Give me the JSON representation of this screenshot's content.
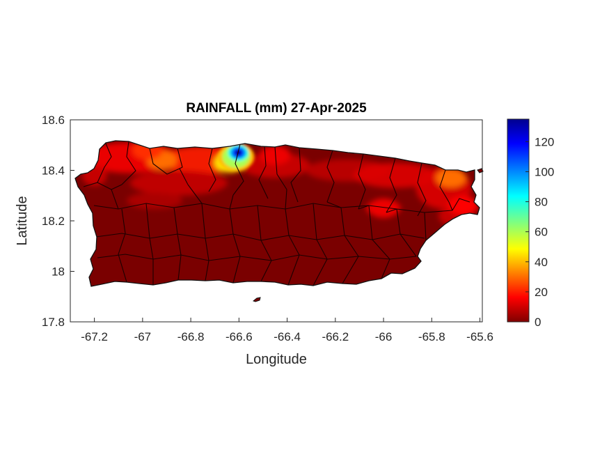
{
  "title": "RAINFALL (mm) 27-Apr-2025",
  "xlabel": "Longitude",
  "ylabel": "Latitude",
  "x_ticks": [
    "-67.2",
    "-67",
    "-66.8",
    "-66.6",
    "-66.4",
    "-66.2",
    "-66",
    "-65.8",
    "-65.6"
  ],
  "y_ticks": [
    "18.6",
    "18.4",
    "18.2",
    "18",
    "17.8"
  ],
  "colorbar_ticks": [
    "120",
    "100",
    "80",
    "60",
    "40",
    "20",
    "0"
  ],
  "map_data": {
    "region": "Puerto Rico",
    "variable": "Rainfall",
    "unit": "mm",
    "date": "27-Apr-2025",
    "colormap": "jet",
    "color_limits": [
      0,
      135
    ],
    "x_range": [
      -67.3,
      -65.59
    ],
    "y_range": [
      17.8,
      18.6
    ],
    "hotspots": [
      {
        "lon": -66.6,
        "lat": 18.47,
        "value": 135
      },
      {
        "lon": -66.64,
        "lat": 18.43,
        "value": 45
      },
      {
        "lon": -66.92,
        "lat": 18.44,
        "value": 30
      },
      {
        "lon": -65.72,
        "lat": 18.37,
        "value": 30
      },
      {
        "lon": -66.98,
        "lat": 18.48,
        "value": 22
      },
      {
        "lon": -66.45,
        "lat": 18.46,
        "value": 14
      },
      {
        "lon": -66.0,
        "lat": 18.25,
        "value": 14
      },
      {
        "lon": -65.67,
        "lat": 18.26,
        "value": 16
      }
    ]
  }
}
